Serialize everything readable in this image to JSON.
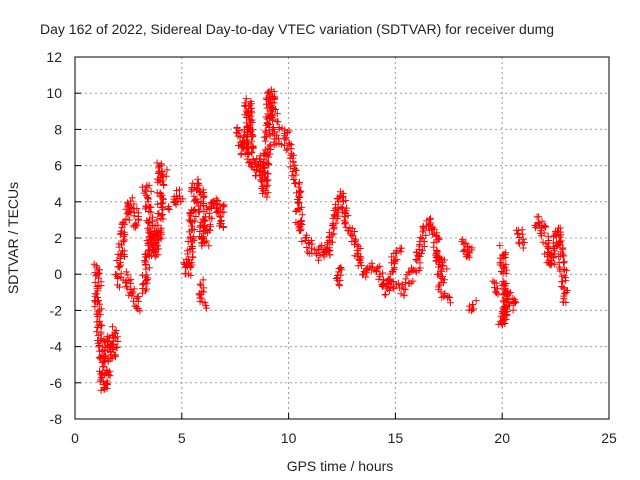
{
  "chart_data": {
    "type": "scatter",
    "title": "Day 162 of 2022, Sidereal Day-to-day VTEC variation (SDTVAR) for receiver dumg",
    "xlabel": "GPS time / hours",
    "ylabel": "SDTVAR / TECUs",
    "xlim": [
      0,
      25
    ],
    "ylim": [
      -8,
      12
    ],
    "xticks": [
      0,
      5,
      10,
      15,
      20,
      25
    ],
    "yticks": [
      -8,
      -6,
      -4,
      -2,
      0,
      2,
      4,
      6,
      8,
      10,
      12
    ],
    "grid": true,
    "marker": "plus",
    "color": "#ff0000",
    "series": [
      {
        "name": "SDTVAR",
        "traces": [
          [
            [
              1.0,
              0.5
            ],
            [
              1.1,
              0.2
            ],
            [
              1.05,
              -1
            ],
            [
              1.1,
              -2.5
            ],
            [
              1.2,
              -3.5
            ],
            [
              1.3,
              -5
            ],
            [
              1.35,
              -6.3
            ],
            [
              1.5,
              -5.5
            ],
            [
              1.5,
              -4
            ],
            [
              1.6,
              -3.5
            ],
            [
              1.8,
              -4.5
            ],
            [
              1.9,
              -3
            ]
          ],
          [
            [
              2.0,
              -0.5
            ],
            [
              2.2,
              1.5
            ],
            [
              2.4,
              3
            ],
            [
              2.6,
              4
            ],
            [
              2.8,
              3.5
            ],
            [
              2.9,
              2.5
            ]
          ],
          [
            [
              2.4,
              0
            ],
            [
              2.6,
              -1
            ],
            [
              2.8,
              -1
            ],
            [
              2.9,
              -2
            ]
          ],
          [
            [
              3.2,
              -1
            ],
            [
              3.3,
              0
            ],
            [
              3.5,
              1.5
            ],
            [
              3.6,
              2.5
            ],
            [
              3.8,
              1
            ],
            [
              4.0,
              3
            ],
            [
              4.0,
              6
            ],
            [
              4.2,
              5.5
            ]
          ],
          [
            [
              3.3,
              5
            ],
            [
              3.4,
              4.5
            ],
            [
              3.5,
              3
            ],
            [
              3.6,
              1.5
            ]
          ],
          [
            [
              4.5,
              3.5
            ],
            [
              4.8,
              4.5
            ],
            [
              5.0,
              4.2
            ]
          ],
          [
            [
              5.2,
              1
            ],
            [
              5.3,
              0
            ],
            [
              5.5,
              3
            ],
            [
              5.6,
              4.8
            ],
            [
              5.7,
              5
            ],
            [
              5.9,
              4.5
            ],
            [
              6.0,
              2
            ],
            [
              6.1,
              1.5
            ],
            [
              6.2,
              3
            ],
            [
              6.4,
              4
            ],
            [
              6.6,
              3.5
            ],
            [
              6.8,
              4
            ],
            [
              6.9,
              2.5
            ]
          ],
          [
            [
              5.9,
              -0.5
            ],
            [
              6.0,
              -1.8
            ]
          ],
          [
            [
              7.6,
              8
            ],
            [
              7.8,
              7
            ],
            [
              8.0,
              6.5
            ],
            [
              8.1,
              9.5
            ],
            [
              8.3,
              6
            ],
            [
              8.5,
              5.5
            ],
            [
              8.7,
              6.5
            ],
            [
              8.9,
              4.5
            ],
            [
              9.0,
              7
            ],
            [
              9.1,
              9.5
            ],
            [
              9.2,
              10.2
            ],
            [
              9.4,
              8
            ],
            [
              9.5,
              7
            ]
          ],
          [
            [
              9.8,
              8
            ],
            [
              10.0,
              7
            ],
            [
              10.2,
              6
            ],
            [
              10.4,
              5
            ],
            [
              10.5,
              3
            ],
            [
              10.7,
              2
            ],
            [
              11.0,
              1.5
            ],
            [
              11.3,
              1
            ],
            [
              11.6,
              1.5
            ],
            [
              11.8,
              1
            ],
            [
              12.0,
              2
            ],
            [
              12.2,
              3.5
            ],
            [
              12.5,
              4.5
            ],
            [
              12.7,
              3
            ],
            [
              13.0,
              2
            ],
            [
              13.3,
              1
            ],
            [
              13.6,
              0
            ],
            [
              14.0,
              0.5
            ],
            [
              14.3,
              0
            ],
            [
              14.6,
              -1
            ],
            [
              14.9,
              0.5
            ],
            [
              15.2,
              1.5
            ]
          ],
          [
            [
              12.3,
              -0.5
            ],
            [
              12.5,
              0.5
            ]
          ],
          [
            [
              15.0,
              -0.5
            ],
            [
              15.3,
              -1
            ],
            [
              15.6,
              -0.5
            ],
            [
              16.0,
              0.5
            ],
            [
              16.3,
              2
            ],
            [
              16.6,
              3
            ],
            [
              16.9,
              2
            ],
            [
              17.2,
              -1
            ],
            [
              17.5,
              -1.5
            ]
          ],
          [
            [
              17.0,
              1
            ],
            [
              17.3,
              0.5
            ]
          ],
          [
            [
              18.2,
              2
            ],
            [
              18.4,
              1
            ],
            [
              18.5,
              1.5
            ]
          ],
          [
            [
              18.5,
              -2
            ],
            [
              18.7,
              -1.5
            ]
          ],
          [
            [
              19.5,
              -0.5
            ],
            [
              19.7,
              -1
            ]
          ],
          [
            [
              20.0,
              1.5
            ],
            [
              20.1,
              0
            ],
            [
              20.2,
              -2
            ],
            [
              20.0,
              -2.8
            ],
            [
              20.3,
              -1
            ],
            [
              20.5,
              -1.5
            ],
            [
              20.7,
              -1.8
            ]
          ],
          [
            [
              20.8,
              2.5
            ],
            [
              20.9,
              1.5
            ]
          ],
          [
            [
              21.5,
              2.5
            ],
            [
              21.8,
              3
            ],
            [
              22.0,
              2
            ],
            [
              22.2,
              0.5
            ],
            [
              22.5,
              1
            ],
            [
              22.6,
              2.5
            ],
            [
              22.8,
              0.5
            ],
            [
              23.0,
              -1.5
            ]
          ]
        ]
      }
    ]
  }
}
